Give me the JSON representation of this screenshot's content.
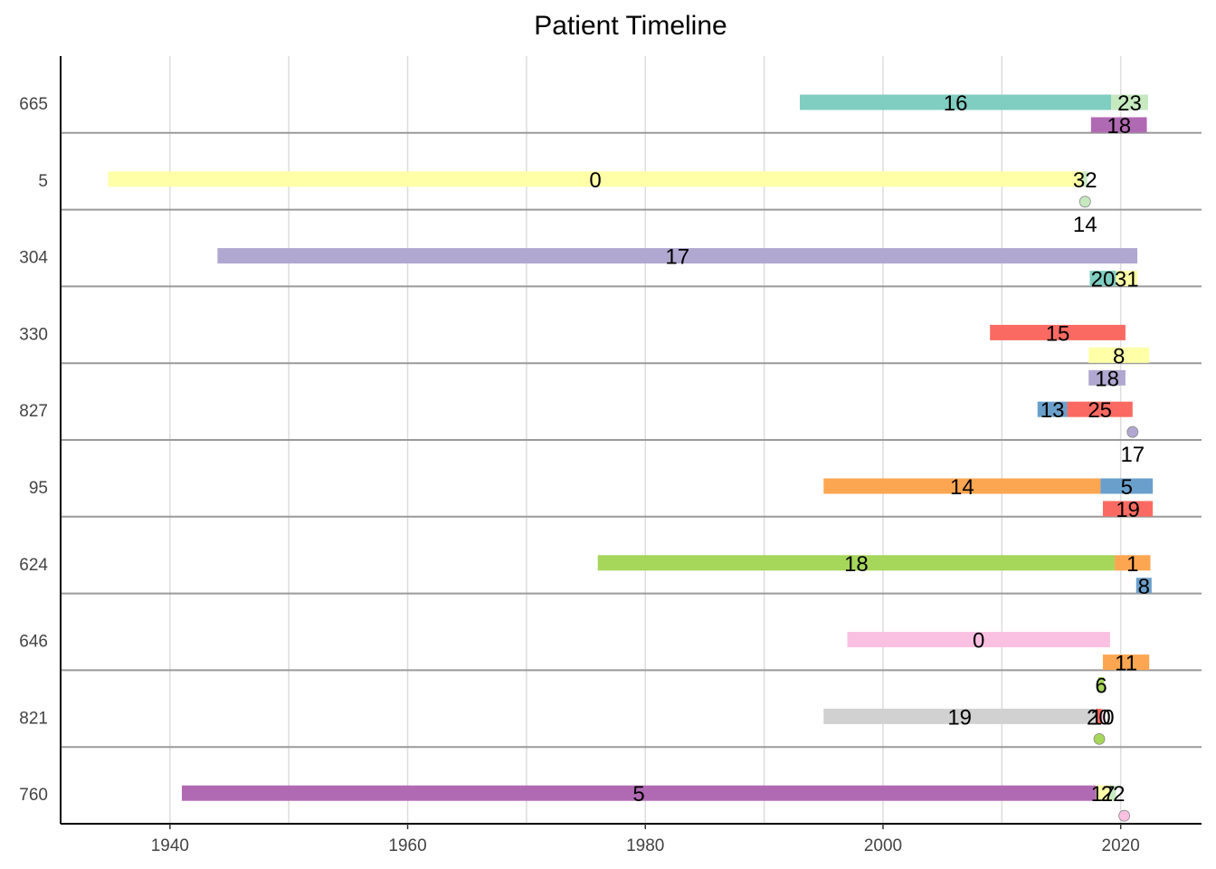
{
  "chart_data": {
    "type": "timeline",
    "title": "Patient Timeline",
    "xlabel": "",
    "ylabel": "",
    "xlim": [
      1930.8,
      2026.8
    ],
    "x_ticks": [
      1940,
      1960,
      1980,
      2000,
      2020
    ],
    "grid": true,
    "patients": [
      {
        "id": "665",
        "segments": [
          {
            "lane": 0,
            "start": 1993.0,
            "end": 2019.2,
            "label": "16",
            "color": "#80CDC1"
          },
          {
            "lane": 0,
            "start": 2019.2,
            "end": 2022.3,
            "label": "23",
            "color": "#C7E9C0"
          },
          {
            "lane": 1,
            "start": 2017.5,
            "end": 2022.2,
            "label": "18",
            "color": "#B06AB3"
          }
        ],
        "events": []
      },
      {
        "id": "5",
        "segments": [
          {
            "lane": 0,
            "start": 1934.8,
            "end": 2016.8,
            "label": "0",
            "color": "#FFFFA8"
          },
          {
            "lane": 0,
            "start": 2016.8,
            "end": 2017.2,
            "label": "32",
            "color": "#CDEBC5"
          }
        ],
        "events": [
          {
            "lane": 1,
            "x": 2017.0,
            "label": "14",
            "color": "#C7E9C0"
          }
        ]
      },
      {
        "id": "304",
        "segments": [
          {
            "lane": 0,
            "start": 1944.0,
            "end": 2021.4,
            "label": "17",
            "color": "#B0A8D0"
          },
          {
            "lane": 1,
            "start": 2017.4,
            "end": 2019.6,
            "label": "20",
            "color": "#80CDC1"
          },
          {
            "lane": 1,
            "start": 2019.6,
            "end": 2021.4,
            "label": "31",
            "color": "#FFFFA8"
          }
        ],
        "events": []
      },
      {
        "id": "330",
        "segments": [
          {
            "lane": 0,
            "start": 2009.0,
            "end": 2020.4,
            "label": "15",
            "color": "#FB6A62"
          },
          {
            "lane": 1,
            "start": 2017.3,
            "end": 2022.4,
            "label": "8",
            "color": "#FFFFA8"
          },
          {
            "lane": 2,
            "start": 2017.3,
            "end": 2020.4,
            "label": "18",
            "color": "#B0A8D0"
          }
        ],
        "events": []
      },
      {
        "id": "827",
        "segments": [
          {
            "lane": 0,
            "start": 2013.0,
            "end": 2015.5,
            "label": "13",
            "color": "#6A9FCB"
          },
          {
            "lane": 0,
            "start": 2015.5,
            "end": 2021.0,
            "label": "25",
            "color": "#FB6A62"
          }
        ],
        "events": [
          {
            "lane": 1,
            "x": 2021.0,
            "label": "17",
            "color": "#B0A8D0"
          }
        ]
      },
      {
        "id": "95",
        "segments": [
          {
            "lane": 0,
            "start": 1995.0,
            "end": 2018.3,
            "label": "14",
            "color": "#FDA651"
          },
          {
            "lane": 0,
            "start": 2018.3,
            "end": 2022.7,
            "label": "5",
            "color": "#6A9FCB"
          },
          {
            "lane": 1,
            "start": 2018.5,
            "end": 2022.7,
            "label": "19",
            "color": "#FB6A62"
          }
        ],
        "events": []
      },
      {
        "id": "624",
        "segments": [
          {
            "lane": 0,
            "start": 1976.0,
            "end": 2019.5,
            "label": "18",
            "color": "#A6D65A"
          },
          {
            "lane": 0,
            "start": 2019.5,
            "end": 2022.5,
            "label": "1",
            "color": "#FDA651"
          },
          {
            "lane": 1,
            "start": 2021.3,
            "end": 2022.6,
            "label": "8",
            "color": "#6A9FCB"
          }
        ],
        "events": []
      },
      {
        "id": "646",
        "segments": [
          {
            "lane": 0,
            "start": 1997.0,
            "end": 2019.1,
            "label": "0",
            "color": "#FAC0E1"
          },
          {
            "lane": 1,
            "start": 2018.5,
            "end": 2022.4,
            "label": "11",
            "color": "#FDA651"
          },
          {
            "lane": 2,
            "start": 2018.1,
            "end": 2018.6,
            "label": "6",
            "color": "#A6D65A"
          }
        ],
        "events": []
      },
      {
        "id": "821",
        "segments": [
          {
            "lane": 0,
            "start": 1995.0,
            "end": 2017.9,
            "label": "19",
            "color": "#D1D1D1"
          },
          {
            "lane": 0,
            "start": 2017.9,
            "end": 2018.4,
            "label": "20",
            "color": "#FB6A62"
          },
          {
            "lane": 0,
            "start": 2018.4,
            "end": 2018.5,
            "label": "10",
            "color": "#FAC0E1"
          }
        ],
        "events": [
          {
            "lane": 1,
            "x": 2018.2,
            "label": "",
            "color": "#A6D65A"
          }
        ]
      },
      {
        "id": "760",
        "segments": [
          {
            "lane": 0,
            "start": 1941.0,
            "end": 2017.9,
            "label": "5",
            "color": "#B06AB3"
          },
          {
            "lane": 0,
            "start": 2017.9,
            "end": 2019.1,
            "label": "17",
            "color": "#FFFFA8"
          },
          {
            "lane": 0,
            "start": 2019.1,
            "end": 2019.6,
            "label": "22",
            "color": "#C7E9C0"
          }
        ],
        "events": [
          {
            "lane": 1,
            "x": 2020.3,
            "label": "",
            "color": "#FAC0E1"
          }
        ]
      }
    ]
  }
}
